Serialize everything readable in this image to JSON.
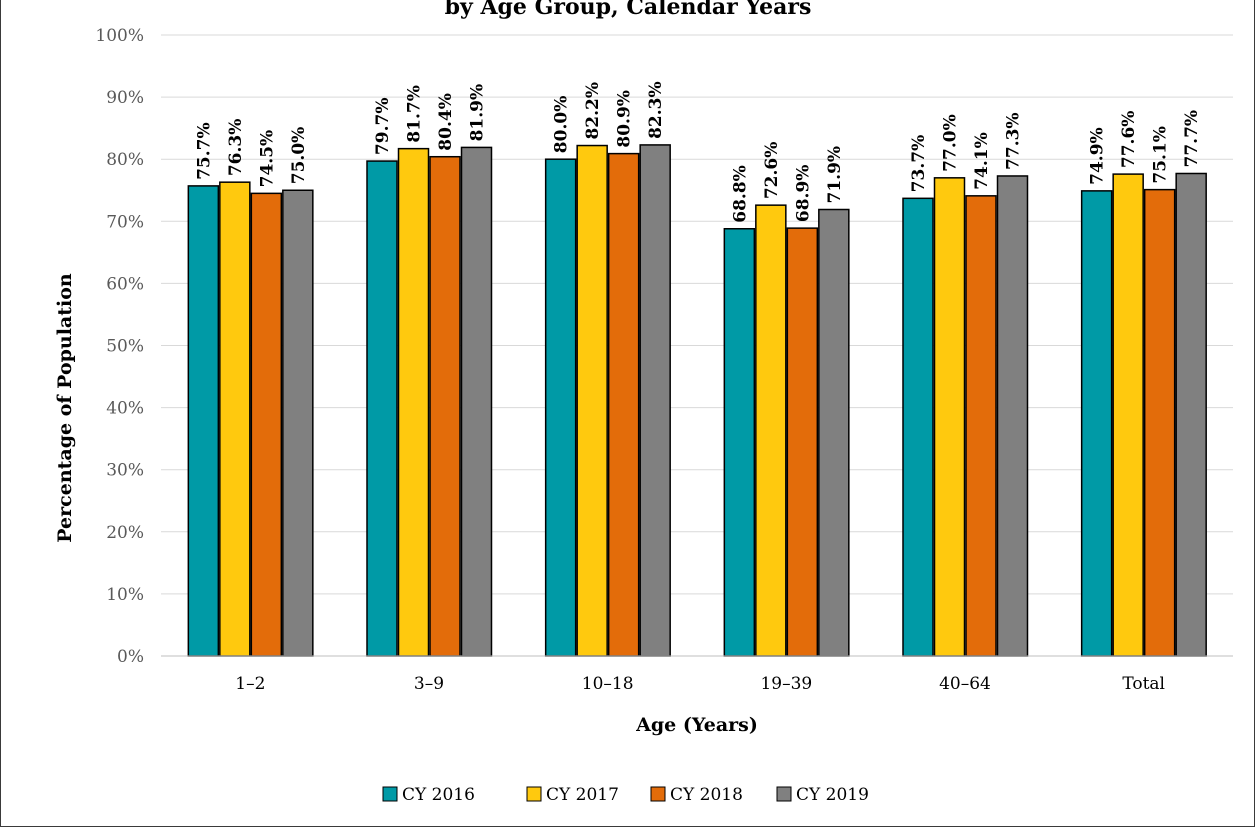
{
  "chart_data": {
    "type": "bar",
    "title": "by Age Group, Calendar Years",
    "xlabel": "Age (Years)",
    "ylabel": "Percentage of Population",
    "ylim": [
      0,
      100
    ],
    "yticks": [
      "0%",
      "10%",
      "20%",
      "30%",
      "40%",
      "50%",
      "60%",
      "70%",
      "80%",
      "90%",
      "100%"
    ],
    "categories": [
      "1–2",
      "3–9",
      "10–18",
      "19–39",
      "40–64",
      "Total"
    ],
    "grid": true,
    "legend_position": "bottom",
    "series": [
      {
        "name": "CY 2016",
        "color": "#009aa6",
        "values": [
          75.7,
          79.7,
          80.0,
          68.8,
          73.7,
          74.9
        ],
        "labels": [
          "75.7%",
          "79.7%",
          "80.0%",
          "68.8%",
          "73.7%",
          "74.9%"
        ]
      },
      {
        "name": "CY 2017",
        "color": "#ffc90e",
        "values": [
          76.3,
          81.7,
          82.2,
          72.6,
          77.0,
          77.6
        ],
        "labels": [
          "76.3%",
          "81.7%",
          "82.2%",
          "72.6%",
          "77.0%",
          "77.6%"
        ]
      },
      {
        "name": "CY 2018",
        "color": "#e36c0a",
        "values": [
          74.5,
          80.4,
          80.9,
          68.9,
          74.1,
          75.1
        ],
        "labels": [
          "74.5%",
          "80.4%",
          "80.9%",
          "68.9%",
          "74.1%",
          "75.1%"
        ]
      },
      {
        "name": "CY 2019",
        "color": "#808080",
        "values": [
          75.0,
          81.9,
          82.3,
          71.9,
          77.3,
          77.7
        ],
        "labels": [
          "75.0%",
          "81.9%",
          "82.3%",
          "71.9%",
          "77.3%",
          "77.7%"
        ]
      }
    ]
  }
}
